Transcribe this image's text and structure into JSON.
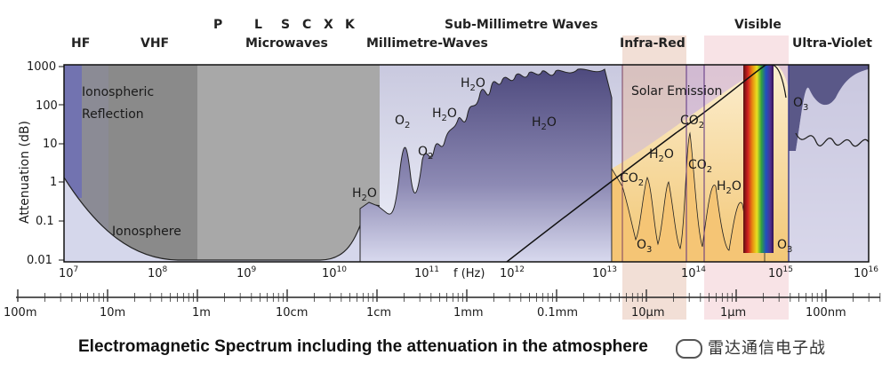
{
  "diagram": {
    "bands_top": [
      "P",
      "L",
      "S",
      "C",
      "X",
      "K",
      "Sub-Millimetre Waves",
      "Visible"
    ],
    "bands": [
      "HF",
      "VHF",
      "Microwaves",
      "Millimetre-Waves",
      "Infra-Red",
      "Ultra-Violet"
    ],
    "ylabel": "Attenuation (dB)",
    "y_ticks": [
      "1000",
      "100",
      "10",
      "1",
      "0.1",
      "0.01"
    ],
    "x_label": "f (Hz)",
    "freq_ticks": [
      {
        "base": "10",
        "exp": "7"
      },
      {
        "base": "10",
        "exp": "8"
      },
      {
        "base": "10",
        "exp": "9"
      },
      {
        "base": "10",
        "exp": "10"
      },
      {
        "base": "10",
        "exp": "11"
      },
      {
        "base": "10",
        "exp": "12"
      },
      {
        "base": "10",
        "exp": "13"
      },
      {
        "base": "10",
        "exp": "14"
      },
      {
        "base": "10",
        "exp": "15"
      },
      {
        "base": "10",
        "exp": "16"
      }
    ],
    "wavelength_ticks": [
      "100m",
      "10m",
      "1m",
      "10cm",
      "1cm",
      "1mm",
      "0.1mm",
      "10µm",
      "1µm",
      "100nm"
    ],
    "regions": {
      "ionospheric_reflection_1": "Ionospheric",
      "ionospheric_reflection_2": "Reflection",
      "ionosphere": "Ionosphere",
      "solar_emission": "Solar Emission"
    },
    "molecules": [
      {
        "main": "H",
        "sub": "2",
        "tail": "O"
      },
      {
        "main": "O",
        "sub": "2",
        "tail": ""
      },
      {
        "main": "O",
        "sub": "2",
        "tail": ""
      },
      {
        "main": "H",
        "sub": "2",
        "tail": "O"
      },
      {
        "main": "H",
        "sub": "2",
        "tail": "O"
      },
      {
        "main": "H",
        "sub": "2",
        "tail": "O"
      },
      {
        "main": "CO",
        "sub": "2",
        "tail": ""
      },
      {
        "main": "H",
        "sub": "2",
        "tail": "O"
      },
      {
        "main": "CO",
        "sub": "2",
        "tail": ""
      },
      {
        "main": "CO",
        "sub": "2",
        "tail": ""
      },
      {
        "main": "H",
        "sub": "2",
        "tail": "O"
      },
      {
        "main": "O",
        "sub": "3",
        "tail": ""
      },
      {
        "main": "O",
        "sub": "3",
        "tail": ""
      },
      {
        "main": "O",
        "sub": "3",
        "tail": ""
      }
    ]
  },
  "caption": "Electromagnetic Spectrum including the attenuation in the atmosphere",
  "watermark": "雷达通信电子战",
  "colors": {
    "absorption": "#6e6a96",
    "ionosphere_gray": "#9a9a9a",
    "plot_bg": "#dfe0ef",
    "solar": "#f7d98a"
  }
}
